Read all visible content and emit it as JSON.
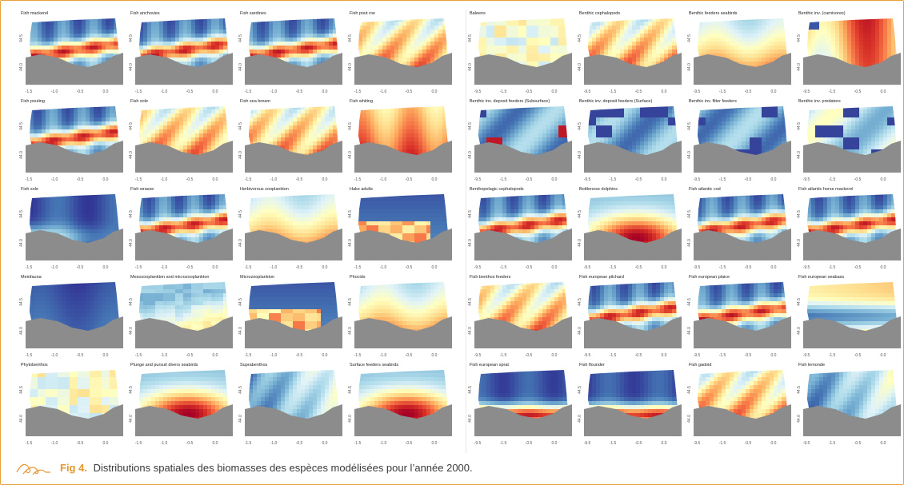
{
  "caption": {
    "label": "Fig 4.",
    "text": "Distributions spatiales des biomasses des espèces modélisées pour l’année 2000."
  },
  "colors": {
    "land": "#8c8c8c",
    "frame": "#e8a13a",
    "caption_label": "#e8962e",
    "ramp": [
      "#313695",
      "#4575b4",
      "#74add1",
      "#abd9e9",
      "#e0f3f8",
      "#ffffbf",
      "#fee090",
      "#fdae61",
      "#f46d43",
      "#d73027",
      "#a50026"
    ]
  },
  "icons": {
    "caption": "wave-icon"
  },
  "axes": {
    "left_x_ticks": [
      "-1.5",
      "-1.0",
      "-0.5",
      "0.0"
    ],
    "right_x_ticks": [
      "-9.5",
      "-1.5",
      "-0.5",
      "0.0"
    ],
    "y_ticks": [
      "44.0",
      "44.5"
    ]
  },
  "left_panels": [
    {
      "title": "Fish mackerel",
      "pattern": "coast-band"
    },
    {
      "title": "Fish anchovies",
      "pattern": "coast-band"
    },
    {
      "title": "Fish sardines",
      "pattern": "coast-band"
    },
    {
      "title": "Fish pout roe",
      "pattern": "warm-diag"
    },
    {
      "title": "Fish pouting",
      "pattern": "coast-band"
    },
    {
      "title": "Fish sole",
      "pattern": "warm-diag"
    },
    {
      "title": "Fish sea bream",
      "pattern": "warm-diag"
    },
    {
      "title": "Fish whiting",
      "pattern": "hot"
    },
    {
      "title": "Fish sole",
      "pattern": "cool"
    },
    {
      "title": "Fish wrasse",
      "pattern": "coast-band"
    },
    {
      "title": "Herbivorous zooplankton",
      "pattern": "warm-south"
    },
    {
      "title": "Hake adults",
      "pattern": "patchy-blue"
    },
    {
      "title": "Meiofauna",
      "pattern": "deep-blue"
    },
    {
      "title": "Mesozooplankton and microzooplankton",
      "pattern": "warm-corner"
    },
    {
      "title": "Microzooplankton",
      "pattern": "patchy-blue"
    },
    {
      "title": "Phocids",
      "pattern": "warm-south"
    },
    {
      "title": "Phytobenthos",
      "pattern": "patchy-light"
    },
    {
      "title": "Plunge and pursuit divers seabirds",
      "pattern": "red-blob"
    },
    {
      "title": "Suprabenthos",
      "pattern": "cool-diag"
    },
    {
      "title": "Surface feeders seabirds",
      "pattern": "red-blob"
    }
  ],
  "right_panels": [
    {
      "title": "Baleens",
      "pattern": "patchy-light"
    },
    {
      "title": "Benthic cephalopods",
      "pattern": "warm-diag"
    },
    {
      "title": "Benthic feeders seabirds",
      "pattern": "warm-south"
    },
    {
      "title": "Benthic inv. (carnivores)",
      "pattern": "hot-patchy"
    },
    {
      "title": "Benthic inv. deposit feeders (Subsurface)",
      "pattern": "teal-patchy"
    },
    {
      "title": "Benthic inv. deposit feeders (Surface)",
      "pattern": "teal-patchy"
    },
    {
      "title": "Benthic inv. filter feeders",
      "pattern": "teal-patchy"
    },
    {
      "title": "Benthic inv. predators",
      "pattern": "teal-light"
    },
    {
      "title": "Benthopelagic cephalopods",
      "pattern": "coast-band"
    },
    {
      "title": "Bottlenose dolphins",
      "pattern": "red-blob"
    },
    {
      "title": "Fish atlantic cod",
      "pattern": "coast-band"
    },
    {
      "title": "Fish atlantic horse mackerel",
      "pattern": "coast-band"
    },
    {
      "title": "Fish benthos feeders",
      "pattern": "warm-diag"
    },
    {
      "title": "Fish european pilchard",
      "pattern": "coast-band"
    },
    {
      "title": "Fish european plaice",
      "pattern": "coast-band"
    },
    {
      "title": "Fish european seabass",
      "pattern": "yellow-blue"
    },
    {
      "title": "Fish european sprat",
      "pattern": "deep-band"
    },
    {
      "title": "Fish flounder",
      "pattern": "deep-band"
    },
    {
      "title": "Fish gadoid",
      "pattern": "warm-diag"
    },
    {
      "title": "Fish lemonde",
      "pattern": "cool-diag"
    }
  ]
}
